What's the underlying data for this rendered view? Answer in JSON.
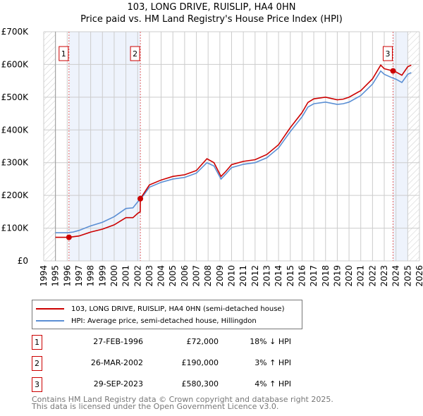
{
  "title": "103, LONG DRIVE, RUISLIP, HA4 0HN",
  "subtitle": "Price paid vs. HM Land Registry's House Price Index (HPI)",
  "chart_data": {
    "type": "line",
    "title": "103, LONG DRIVE, RUISLIP, HA4 0HN",
    "subtitle": "Price paid vs. HM Land Registry's House Price Index (HPI)",
    "xlim": [
      1994,
      2026
    ],
    "ylim": [
      0,
      700000
    ],
    "xticks": [
      "1994",
      "1995",
      "1996",
      "1997",
      "1998",
      "1999",
      "2000",
      "2001",
      "2002",
      "2003",
      "2004",
      "2005",
      "2006",
      "2007",
      "2008",
      "2009",
      "2010",
      "2011",
      "2012",
      "2013",
      "2014",
      "2015",
      "2016",
      "2017",
      "2018",
      "2019",
      "2020",
      "2021",
      "2022",
      "2023",
      "2024",
      "2025",
      "2026"
    ],
    "yticks": [
      {
        "v": 0,
        "label": "£0"
      },
      {
        "v": 100000,
        "label": "£100K"
      },
      {
        "v": 200000,
        "label": "£200K"
      },
      {
        "v": 300000,
        "label": "£300K"
      },
      {
        "v": 400000,
        "label": "£400K"
      },
      {
        "v": 500000,
        "label": "£500K"
      },
      {
        "v": 600000,
        "label": "£600K"
      },
      {
        "v": 700000,
        "label": "£700K"
      }
    ],
    "grid": true,
    "series": [
      {
        "name": "103, LONG DRIVE, RUISLIP, HA4 0HN (semi-detached house)",
        "color": "#cc0000",
        "x": [
          1995,
          1996.15,
          1997,
          1998,
          1999,
          2000,
          2001,
          2001.6,
          2002,
          2002.22,
          2002.23,
          2003,
          2004,
          2005,
          2006,
          2007,
          2007.9,
          2008.5,
          2009.1,
          2009.5,
          2010,
          2011,
          2012,
          2013,
          2014,
          2014.5,
          2015,
          2016,
          2016.5,
          2017,
          2018,
          2019,
          2019.5,
          2020,
          2021,
          2022,
          2022.7,
          2023,
          2023.75,
          2024,
          2024.5,
          2025,
          2025.3
        ],
        "y": [
          72000,
          72000,
          76000,
          88000,
          97000,
          110000,
          132000,
          132000,
          145000,
          150000,
          190000,
          232000,
          247000,
          258000,
          263000,
          276000,
          312000,
          300000,
          258000,
          273000,
          294000,
          304000,
          309000,
          325000,
          355000,
          381000,
          407000,
          453000,
          484000,
          495000,
          500000,
          492000,
          494000,
          500000,
          520000,
          556000,
          598000,
          587000,
          580300,
          577000,
          567000,
          593000,
          598000
        ]
      },
      {
        "name": "HPI: Average price, semi-detached house, Hillingdon",
        "color": "#5b8fd4",
        "x": [
          1995,
          1996,
          1996.5,
          1997,
          1998,
          1999,
          2000,
          2001,
          2001.6,
          2002,
          2002.5,
          2003,
          2004,
          2005,
          2006,
          2007,
          2007.9,
          2008.5,
          2009.1,
          2009.5,
          2010,
          2011,
          2012,
          2013,
          2014,
          2014.5,
          2015,
          2016,
          2016.5,
          2017,
          2018,
          2019,
          2019.5,
          2020,
          2021,
          2022,
          2022.7,
          2023,
          2023.75,
          2024,
          2024.5,
          2025,
          2025.3
        ],
        "y": [
          86000,
          86000,
          88000,
          93000,
          107000,
          118000,
          135000,
          160000,
          162000,
          180000,
          200000,
          225000,
          240000,
          250000,
          255000,
          268000,
          300000,
          290000,
          250000,
          265000,
          285000,
          295000,
          300000,
          315000,
          345000,
          370000,
          395000,
          440000,
          470000,
          480000,
          485000,
          478000,
          480000,
          485000,
          505000,
          540000,
          580000,
          570000,
          558000,
          555000,
          545000,
          570000,
          575000
        ]
      }
    ],
    "transactions": [
      {
        "id": "1",
        "x": 1996.15,
        "y": 72000,
        "date": "27-FEB-1996",
        "price": "£72,000",
        "hpi": "18% ↓ HPI"
      },
      {
        "id": "2",
        "x": 2002.23,
        "y": 190000,
        "date": "26-MAR-2002",
        "price": "£190,000",
        "hpi": "3% ↑ HPI"
      },
      {
        "id": "3",
        "x": 2023.75,
        "y": 580300,
        "date": "29-SEP-2023",
        "price": "£580,300",
        "hpi": "4% ↑ HPI"
      }
    ],
    "shaded_ranges": [
      [
        1996.15,
        2002.23
      ],
      [
        2023.75,
        2025
      ]
    ],
    "hatched_ranges": [
      [
        1994,
        1995
      ],
      [
        2025,
        2026
      ]
    ]
  },
  "legend": {
    "property": "103, LONG DRIVE, RUISLIP, HA4 0HN (semi-detached house)",
    "hpi": "HPI: Average price, semi-detached house, Hillingdon"
  },
  "footer": {
    "line1": "Contains HM Land Registry data © Crown copyright and database right 2025.",
    "line2": "This data is licensed under the Open Government Licence v3.0."
  }
}
